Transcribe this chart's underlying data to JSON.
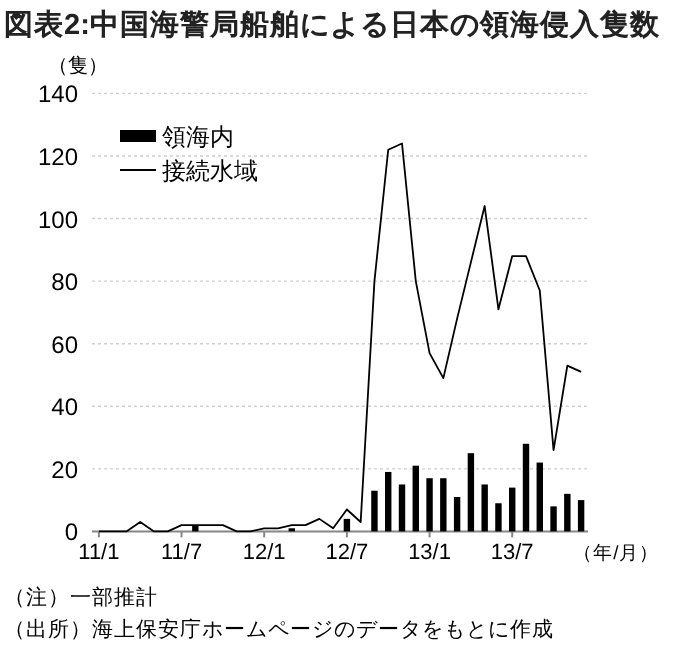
{
  "chart_data": {
    "type": "bar",
    "title": "図表2:中国海警局船舶による日本の領海侵入隻数",
    "ylabel": "（隻）",
    "xlabel": "（年/月）",
    "annotations": [
      "（注）一部推計",
      "（出所）海上保安庁ホームページのデータをもとに作成"
    ],
    "categories": [
      "11/1",
      null,
      null,
      null,
      null,
      null,
      "11/7",
      null,
      null,
      null,
      null,
      null,
      "12/1",
      null,
      null,
      null,
      null,
      null,
      "12/7",
      null,
      null,
      null,
      null,
      null,
      "13/1",
      null,
      null,
      null,
      null,
      null,
      "13/7",
      null,
      null,
      null,
      null,
      null
    ],
    "series": [
      {
        "name": "領海内",
        "color": "#000000",
        "values": [
          0,
          0,
          0,
          0,
          0,
          0,
          0,
          2,
          0,
          0,
          0,
          0,
          0,
          0,
          1,
          0,
          0,
          0,
          4,
          0,
          13,
          19,
          15,
          21,
          17,
          17,
          11,
          25,
          15,
          9,
          14,
          28,
          22,
          8,
          12,
          10
        ]
      },
      {
        "name": "接続水域",
        "type": "line",
        "color": "#000000",
        "values": [
          0,
          0,
          0,
          3,
          0,
          0,
          2,
          2,
          2,
          2,
          0,
          0,
          1,
          1,
          2,
          2,
          4,
          1,
          7,
          3,
          80,
          122,
          124,
          80,
          57,
          49,
          68,
          86,
          104,
          71,
          88,
          88,
          77,
          26,
          53,
          51
        ]
      }
    ],
    "ylim": [
      0,
      140
    ],
    "yticks": [
      0,
      20,
      40,
      60,
      80,
      100,
      120,
      140
    ],
    "grid": "y",
    "legend": "top left"
  }
}
